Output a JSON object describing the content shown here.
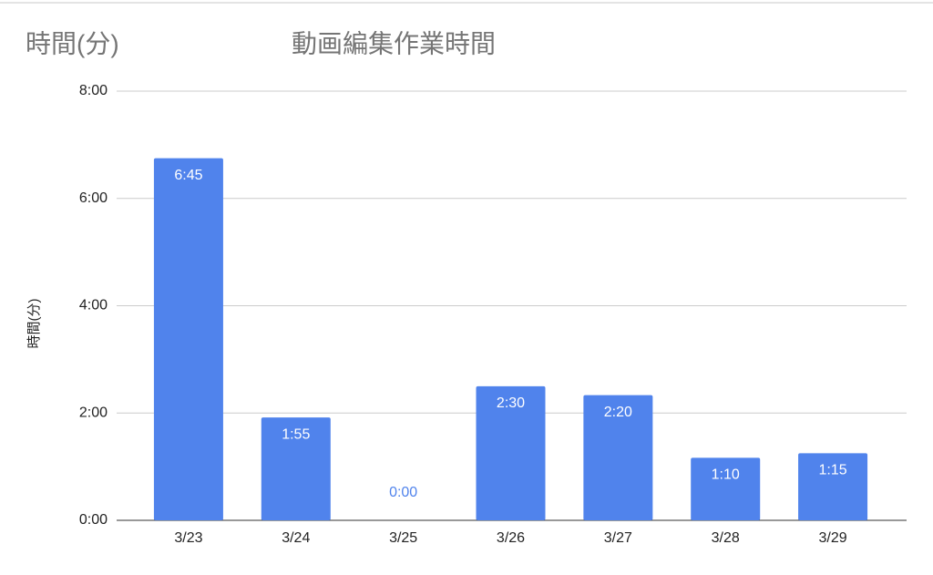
{
  "chart_data": {
    "type": "bar",
    "corner_label": "時間(分)",
    "title": "動画編集作業時間",
    "y_label": "時間(分)",
    "categories": [
      "3/23",
      "3/24",
      "3/25",
      "3/26",
      "3/27",
      "3/28",
      "3/29"
    ],
    "values": [
      405,
      115,
      0,
      150,
      140,
      70,
      75
    ],
    "value_labels": [
      "6:45",
      "1:55",
      "0:00",
      "2:30",
      "2:20",
      "1:10",
      "1:15"
    ],
    "color": "#5083ec",
    "ylim": [
      0,
      480
    ],
    "yticks": [
      {
        "value": 0,
        "label": "0:00"
      },
      {
        "value": 120,
        "label": "2:00"
      },
      {
        "value": 240,
        "label": "4:00"
      },
      {
        "value": 360,
        "label": "6:00"
      },
      {
        "value": 480,
        "label": "8:00"
      }
    ],
    "grid": true
  }
}
